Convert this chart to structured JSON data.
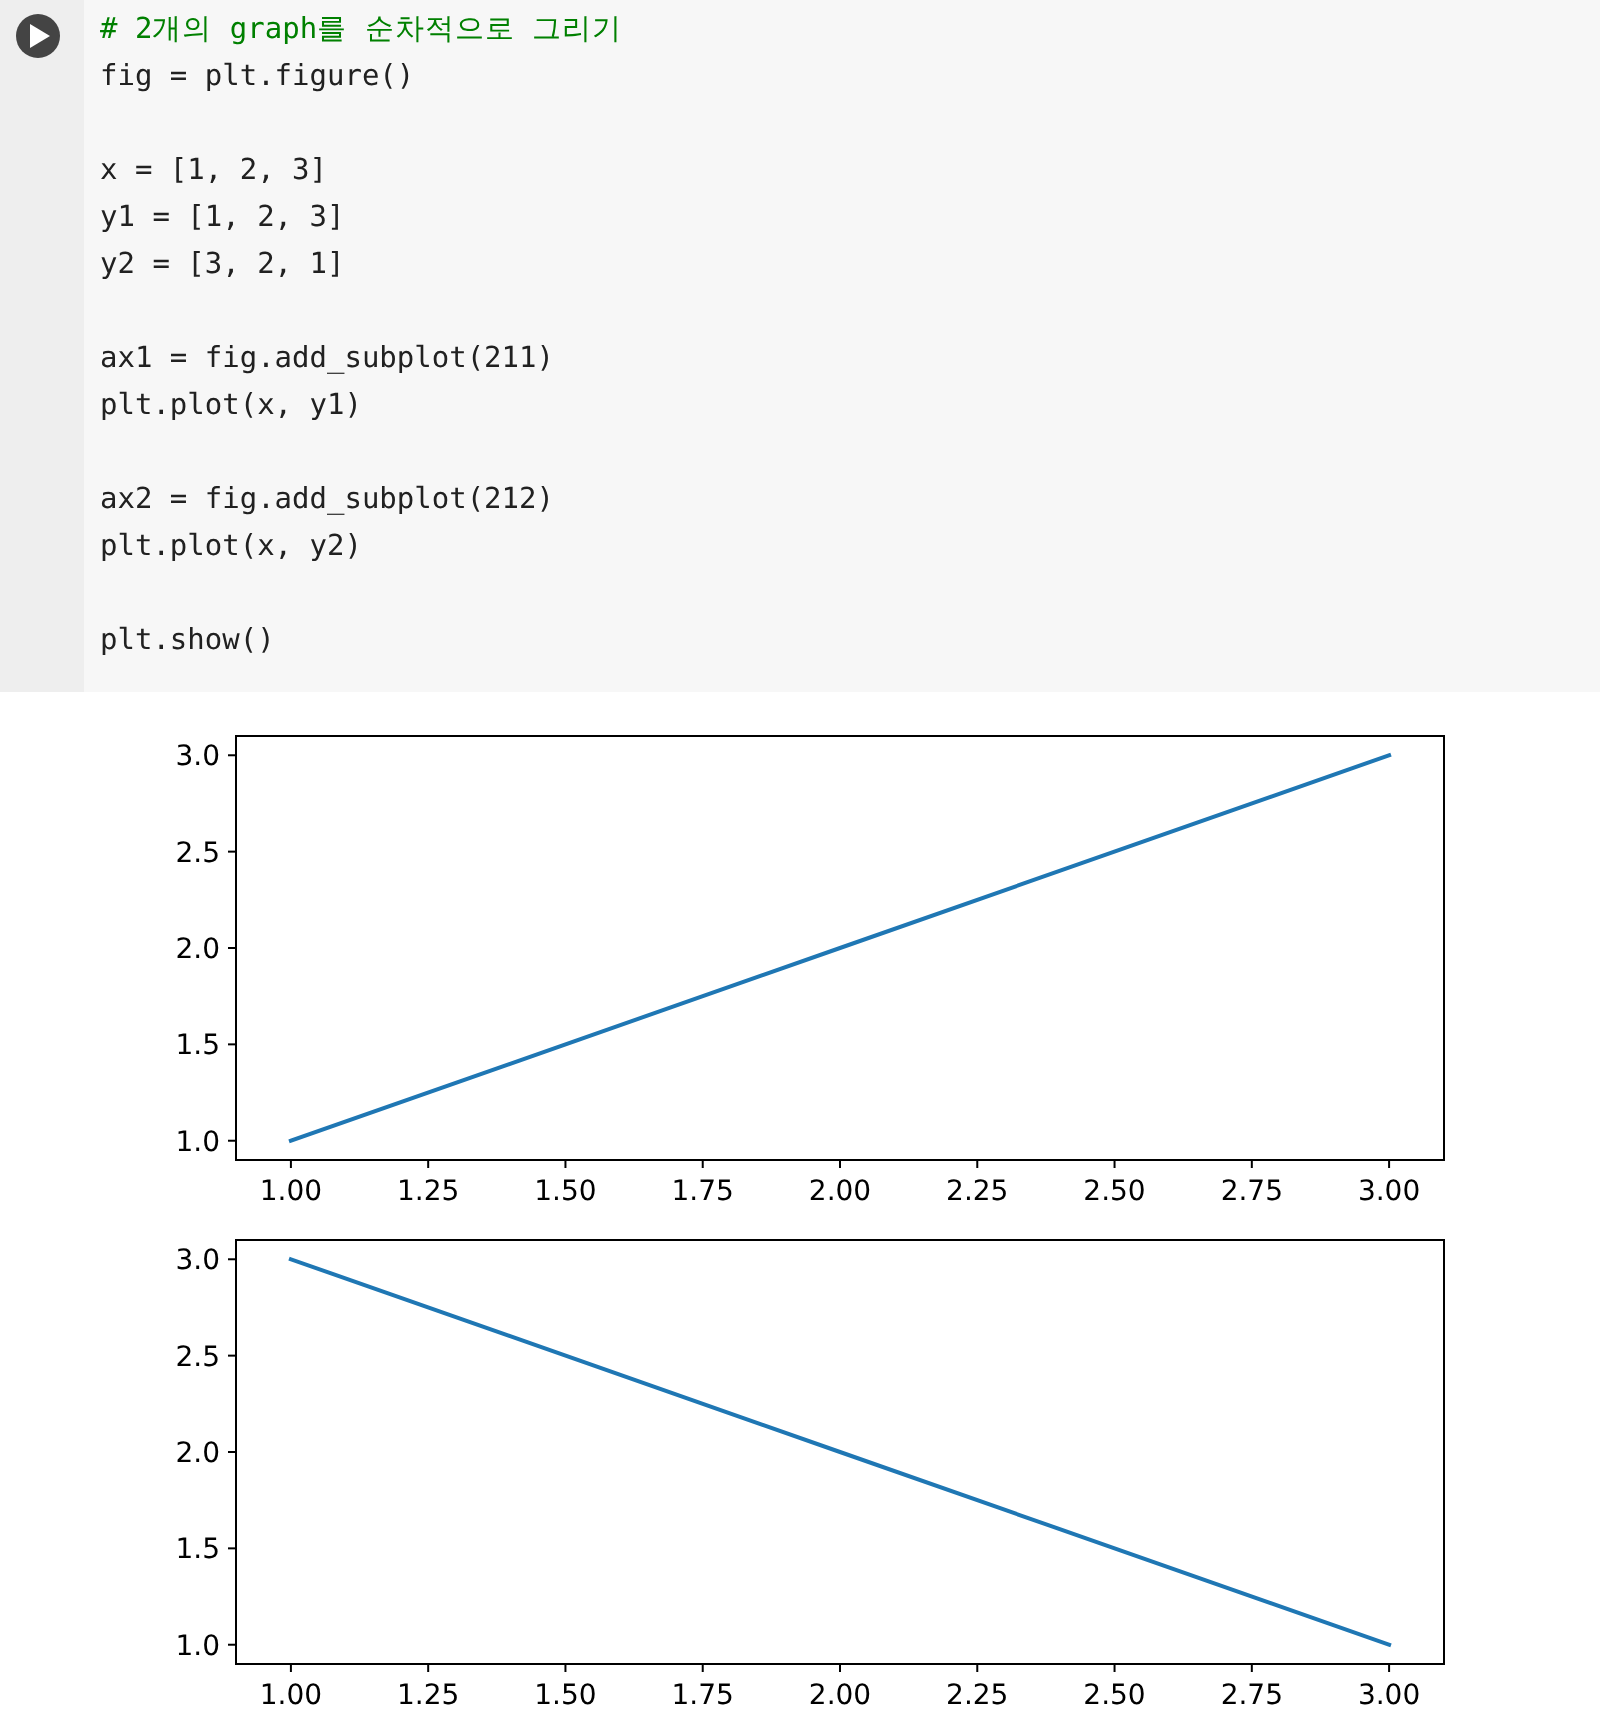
{
  "chart_data": [
    {
      "type": "line",
      "x": [
        1,
        2,
        3
      ],
      "series": [
        {
          "color": "#1f77b4",
          "values": [
            1,
            2,
            3
          ]
        }
      ],
      "xlim": [
        0.9,
        3.1
      ],
      "ylim": [
        0.9,
        3.1
      ],
      "xticks": [
        {
          "value": 1,
          "label": "1.00"
        },
        {
          "value": 1.25,
          "label": "1.25"
        },
        {
          "value": 1.5,
          "label": "1.50"
        },
        {
          "value": 1.75,
          "label": "1.75"
        },
        {
          "value": 2,
          "label": "2.00"
        },
        {
          "value": 2.25,
          "label": "2.25"
        },
        {
          "value": 2.5,
          "label": "2.50"
        },
        {
          "value": 2.75,
          "label": "2.75"
        },
        {
          "value": 3,
          "label": "3.00"
        }
      ],
      "yticks": [
        {
          "value": 1,
          "label": "1.0"
        },
        {
          "value": 1.5,
          "label": "1.5"
        },
        {
          "value": 2,
          "label": "2.0"
        },
        {
          "value": 2.5,
          "label": "2.5"
        },
        {
          "value": 3,
          "label": "3.0"
        }
      ],
      "annotations": [
        "# 2개의 graph를 순차적으로 그리기",
        "fig = plt.figure()",
        "x = [1, 2, 3]",
        "y1 = [1, 2, 3]",
        "y2 = [3, 2, 1]",
        "ax1 = fig.add_subplot(211)",
        "plt.plot(x, y1)",
        "ax2 = fig.add_subplot(212)",
        "plt.plot(x, y2)",
        "plt.show()"
      ]
    },
    {
      "type": "line",
      "x": [
        1,
        2,
        3
      ],
      "series": [
        {
          "color": "#1f77b4",
          "values": [
            3,
            2,
            1
          ]
        }
      ],
      "xlim": [
        0.9,
        3.1
      ],
      "ylim": [
        0.9,
        3.1
      ],
      "xticks": [
        {
          "value": 1,
          "label": "1.00"
        },
        {
          "value": 1.25,
          "label": "1.25"
        },
        {
          "value": 1.5,
          "label": "1.50"
        },
        {
          "value": 1.75,
          "label": "1.75"
        },
        {
          "value": 2,
          "label": "2.00"
        },
        {
          "value": 2.25,
          "label": "2.25"
        },
        {
          "value": 2.5,
          "label": "2.50"
        },
        {
          "value": 2.75,
          "label": "2.75"
        },
        {
          "value": 3,
          "label": "3.00"
        }
      ],
      "yticks": [
        {
          "value": 1,
          "label": "1.0"
        },
        {
          "value": 1.5,
          "label": "1.5"
        },
        {
          "value": 2,
          "label": "2.0"
        },
        {
          "value": 2.5,
          "label": "2.5"
        },
        {
          "value": 3,
          "label": "3.0"
        }
      ]
    }
  ]
}
